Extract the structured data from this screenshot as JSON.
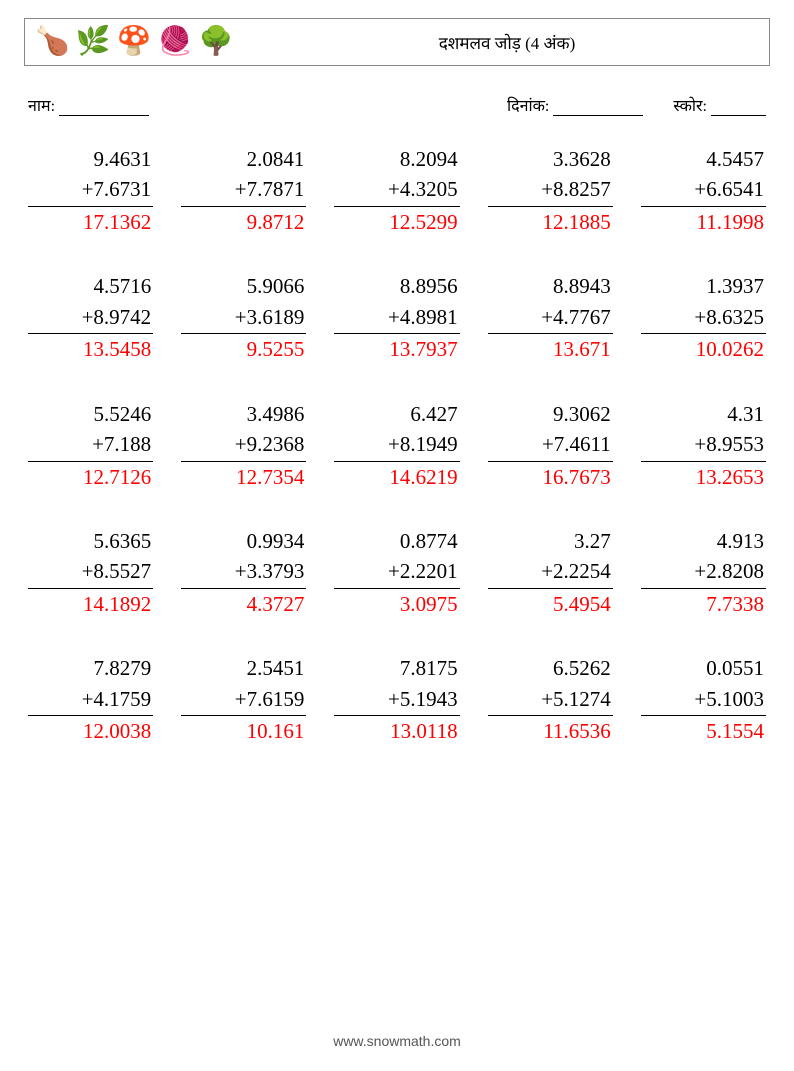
{
  "header": {
    "title": "दशमलव जोड़ (4 अंक)",
    "icons": [
      "🍗",
      "🌿",
      "🍄",
      "🧶",
      "🌳"
    ]
  },
  "meta": {
    "name_label": "नाम:",
    "date_label": "दिनांक:",
    "score_label": "स्कोर:"
  },
  "style": {
    "answer_color": "#ff0000",
    "text_color": "#000000",
    "font_size_problem": 21,
    "font_size_meta": 16,
    "font_size_title": 17,
    "columns": 5,
    "rows": 5
  },
  "problems": [
    {
      "a": "9.4631",
      "b": "7.6731",
      "ans": "17.1362"
    },
    {
      "a": "2.0841",
      "b": "7.7871",
      "ans": "9.8712"
    },
    {
      "a": "8.2094",
      "b": "4.3205",
      "ans": "12.5299"
    },
    {
      "a": "3.3628",
      "b": "8.8257",
      "ans": "12.1885"
    },
    {
      "a": "4.5457",
      "b": "6.6541",
      "ans": "11.1998"
    },
    {
      "a": "4.5716",
      "b": "8.9742",
      "ans": "13.5458"
    },
    {
      "a": "5.9066",
      "b": "3.6189",
      "ans": "9.5255"
    },
    {
      "a": "8.8956",
      "b": "4.8981",
      "ans": "13.7937"
    },
    {
      "a": "8.8943",
      "b": "4.7767",
      "ans": "13.671"
    },
    {
      "a": "1.3937",
      "b": "8.6325",
      "ans": "10.0262"
    },
    {
      "a": "5.5246",
      "b": "7.188",
      "ans": "12.7126"
    },
    {
      "a": "3.4986",
      "b": "9.2368",
      "ans": "12.7354"
    },
    {
      "a": "6.427",
      "b": "8.1949",
      "ans": "14.6219"
    },
    {
      "a": "9.3062",
      "b": "7.4611",
      "ans": "16.7673"
    },
    {
      "a": "4.31",
      "b": "8.9553",
      "ans": "13.2653"
    },
    {
      "a": "5.6365",
      "b": "8.5527",
      "ans": "14.1892"
    },
    {
      "a": "0.9934",
      "b": "3.3793",
      "ans": "4.3727"
    },
    {
      "a": "0.8774",
      "b": "2.2201",
      "ans": "3.0975"
    },
    {
      "a": "3.27",
      "b": "2.2254",
      "ans": "5.4954"
    },
    {
      "a": "4.913",
      "b": "2.8208",
      "ans": "7.7338"
    },
    {
      "a": "7.8279",
      "b": "4.1759",
      "ans": "12.0038"
    },
    {
      "a": "2.5451",
      "b": "7.6159",
      "ans": "10.161"
    },
    {
      "a": "7.8175",
      "b": "5.1943",
      "ans": "13.0118"
    },
    {
      "a": "6.5262",
      "b": "5.1274",
      "ans": "11.6536"
    },
    {
      "a": "0.0551",
      "b": "5.1003",
      "ans": "5.1554"
    }
  ],
  "footer": {
    "text": "www.snowmath.com"
  }
}
